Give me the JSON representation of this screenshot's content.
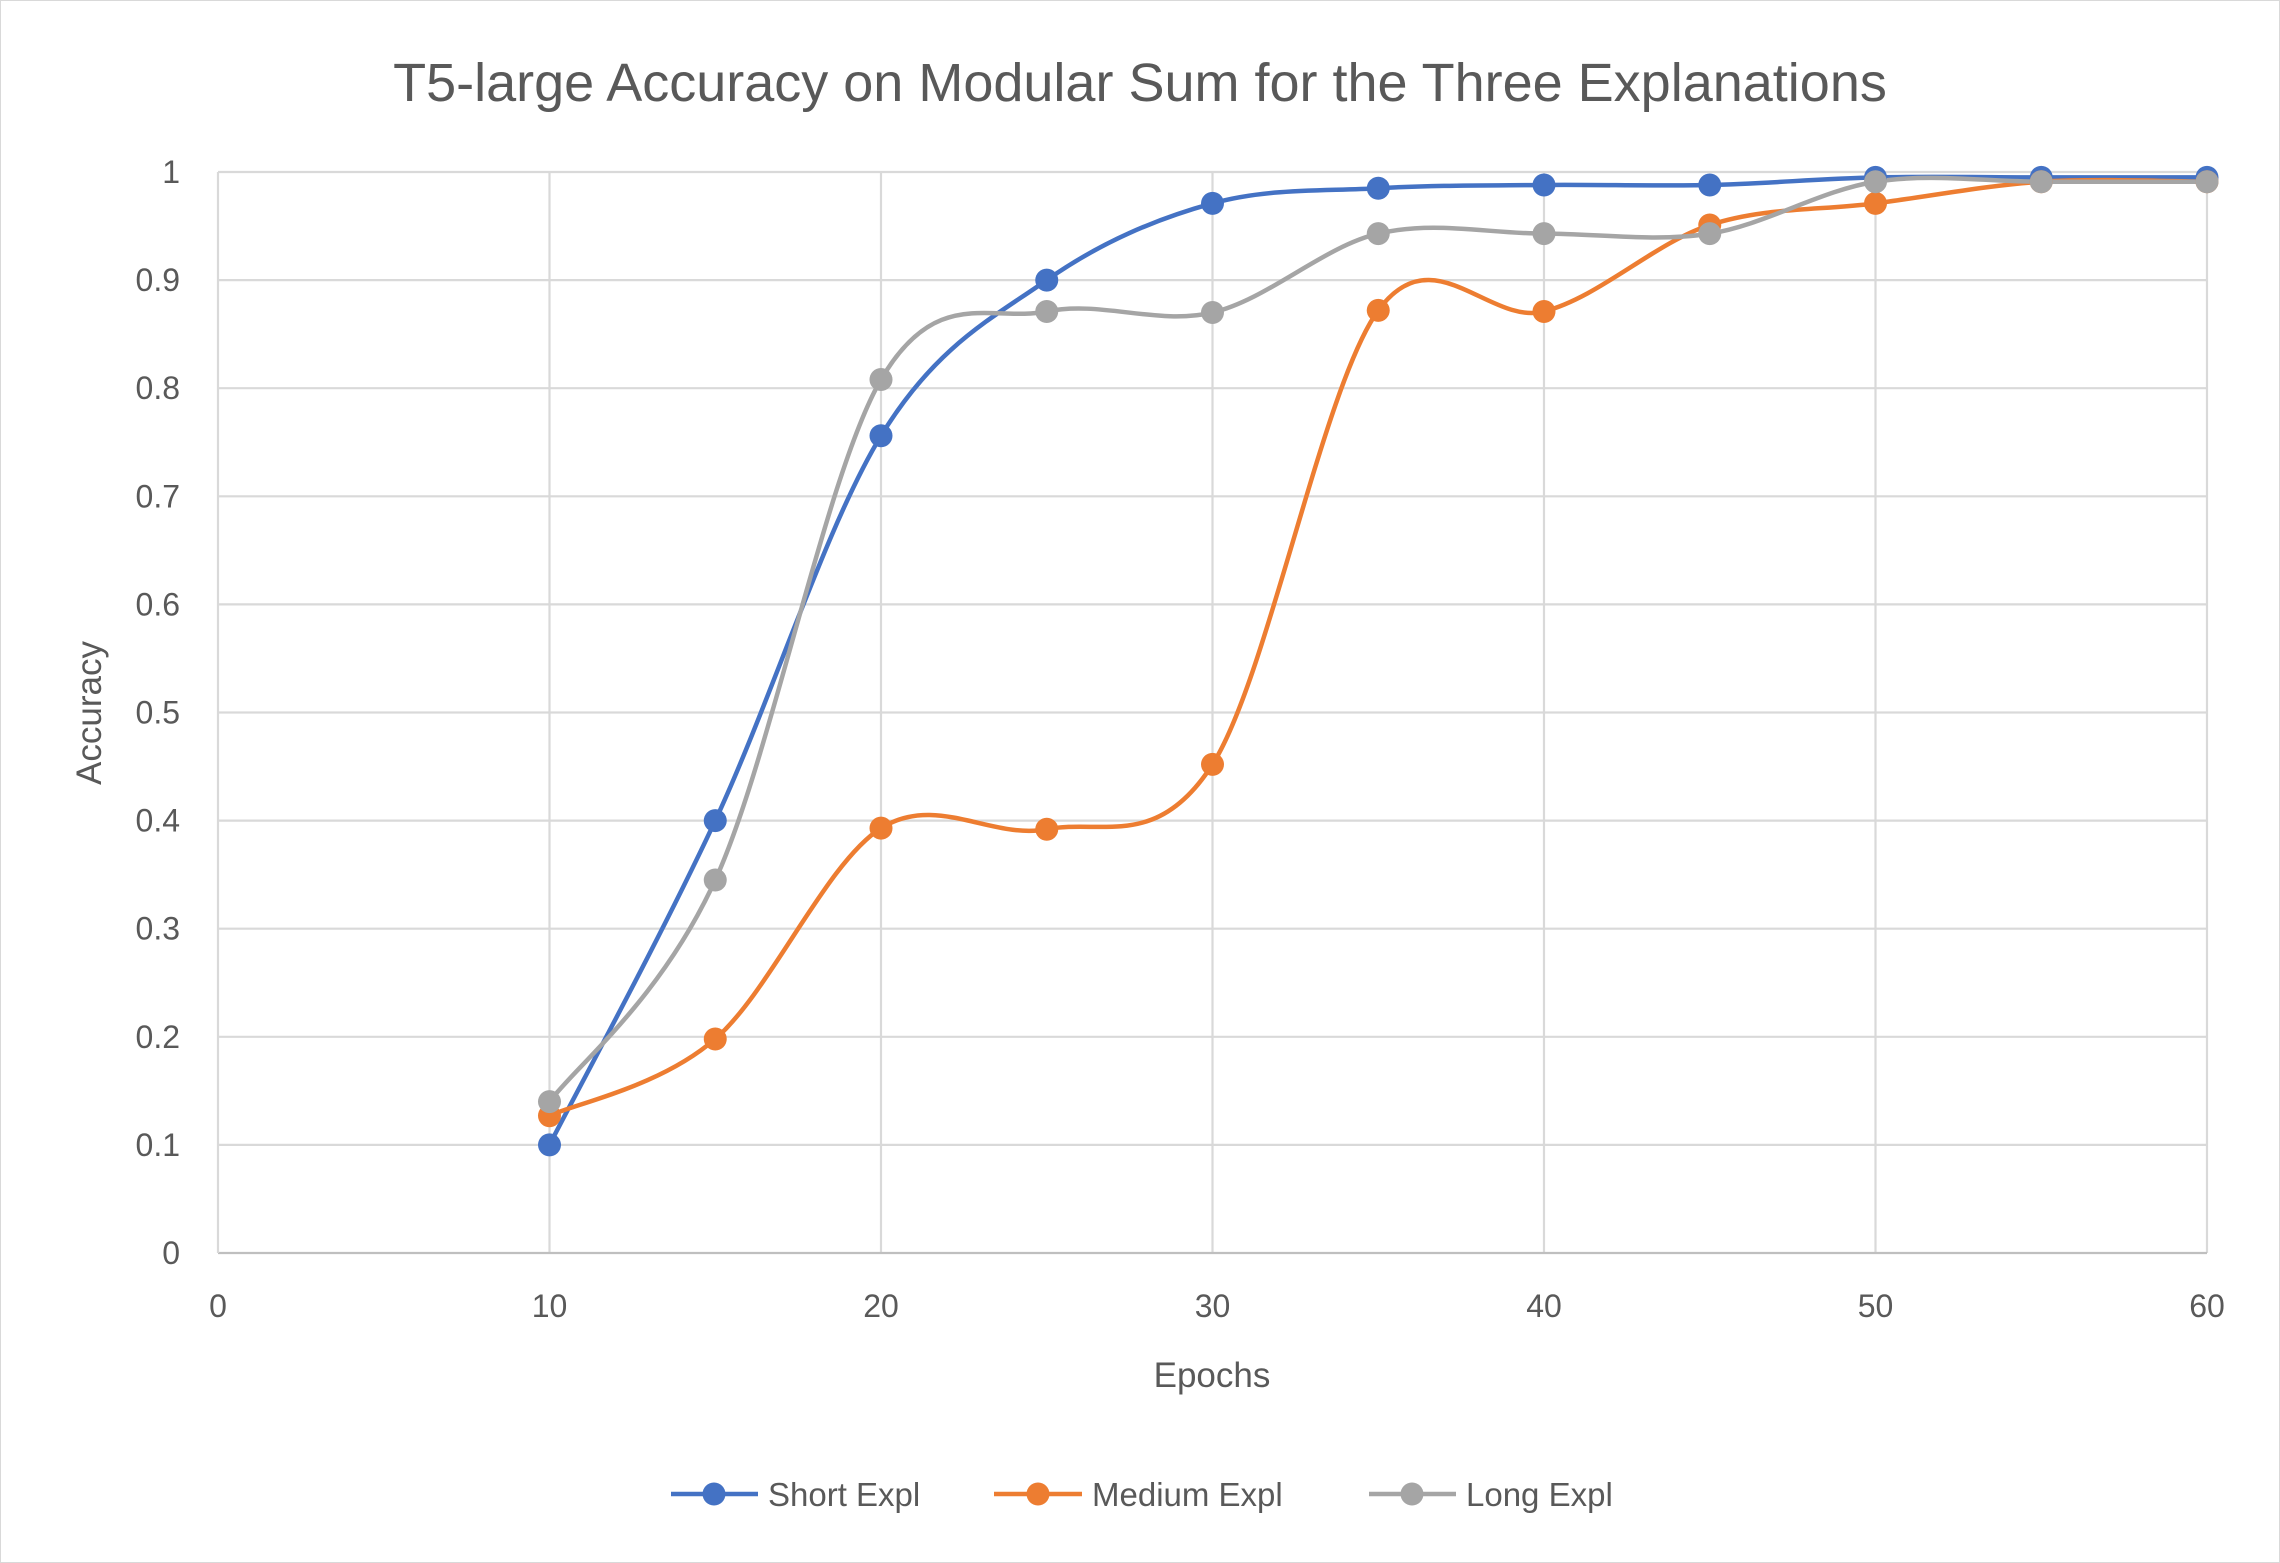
{
  "chart_data": {
    "type": "line",
    "title": "T5-large Accuracy on Modular Sum for the Three Explanations",
    "xlabel": "Epochs",
    "ylabel": "Accuracy",
    "xlim": [
      0,
      60
    ],
    "ylim": [
      0,
      1
    ],
    "x_ticks": [
      "0",
      "10",
      "20",
      "30",
      "40",
      "50",
      "60"
    ],
    "y_ticks": [
      "0",
      "0.1",
      "0.2",
      "0.3",
      "0.4",
      "0.5",
      "0.6",
      "0.7",
      "0.8",
      "0.9",
      "1"
    ],
    "x": [
      10,
      15,
      20,
      25,
      30,
      35,
      40,
      45,
      50,
      55,
      60
    ],
    "grid": true,
    "legend_position": "bottom",
    "series": [
      {
        "name": "Short Expl",
        "color": "#4472C4",
        "values": [
          0.1,
          0.4,
          0.756,
          0.9,
          0.971,
          0.985,
          0.988,
          0.988,
          0.995,
          0.995,
          0.995
        ]
      },
      {
        "name": "Medium Expl",
        "color": "#ED7D31",
        "values": [
          0.127,
          0.198,
          0.393,
          0.392,
          0.452,
          0.872,
          0.871,
          0.951,
          0.971,
          0.991,
          0.991
        ]
      },
      {
        "name": "Long Expl",
        "color": "#A5A5A5",
        "values": [
          0.14,
          0.345,
          0.808,
          0.871,
          0.87,
          0.943,
          0.943,
          0.943,
          0.991,
          0.991,
          0.991
        ]
      }
    ]
  }
}
